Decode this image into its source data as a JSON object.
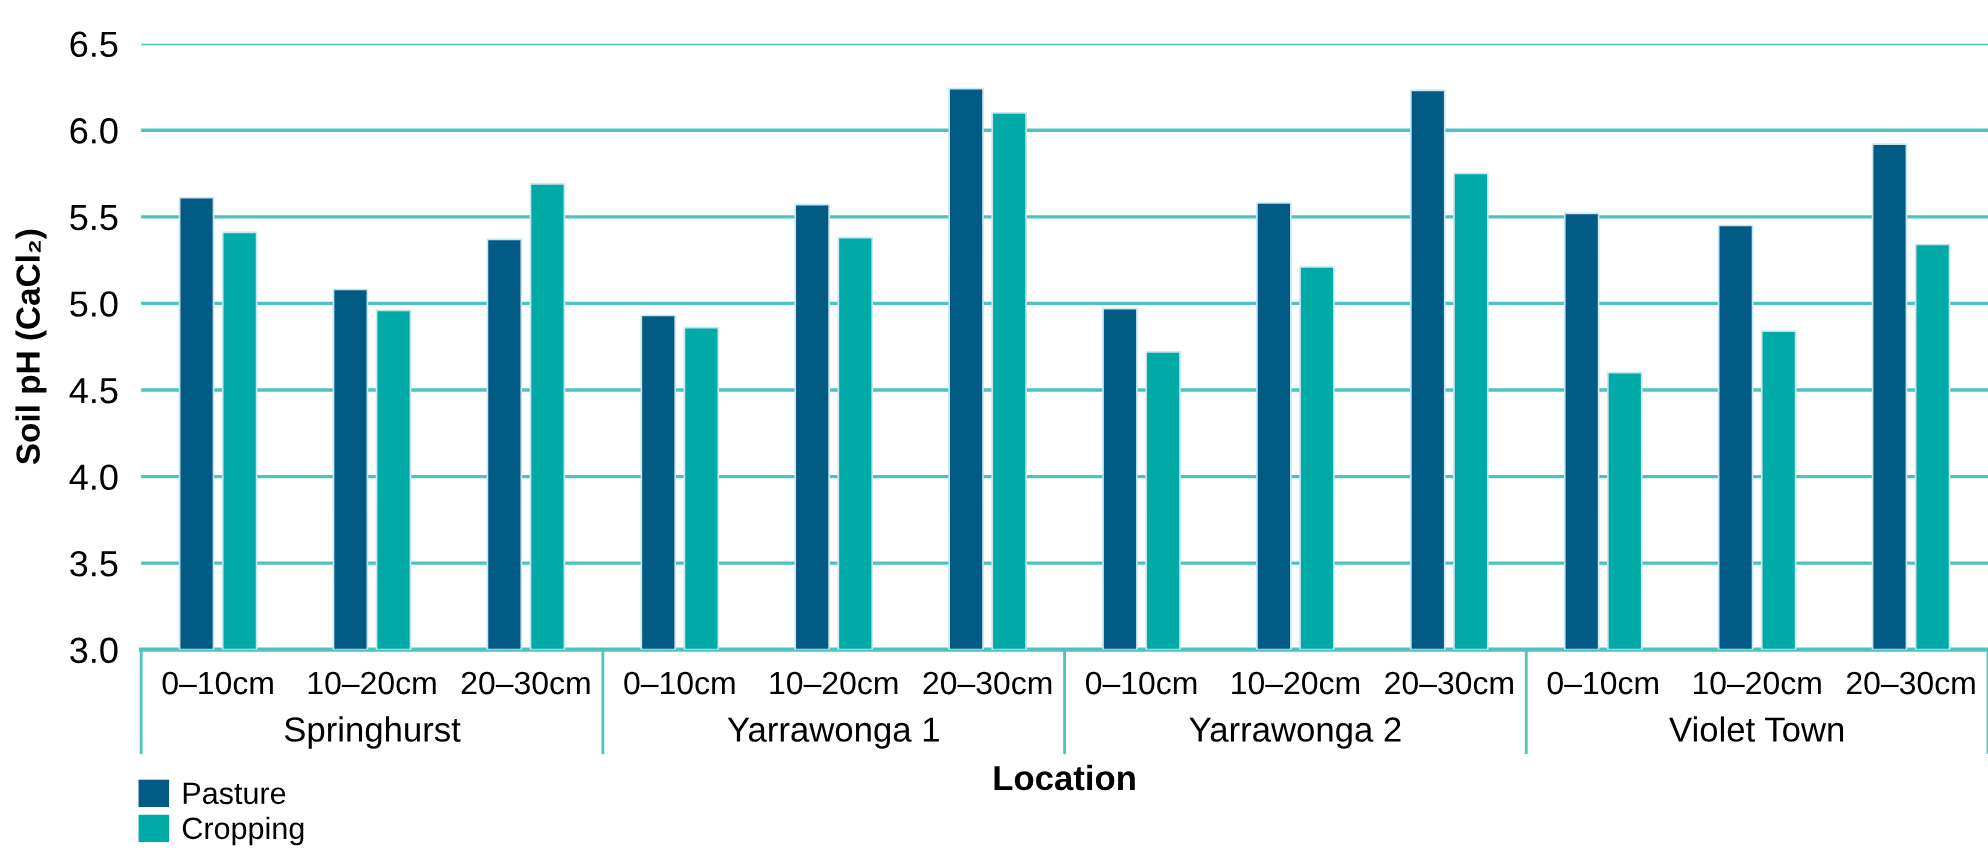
{
  "chart_data": {
    "type": "bar",
    "xlabel": "Location",
    "ylabel": "Soil pH (CaCl₂)",
    "categories": [
      "0–10cm",
      "10–20cm",
      "20–30cm",
      "0–10cm",
      "10–20cm",
      "20–30cm",
      "0–10cm",
      "10–20cm",
      "20–30cm",
      "0–10cm",
      "10–20cm",
      "20–30cm"
    ],
    "series": [
      {
        "name": "Pasture",
        "color": "#025b84",
        "values": [
          5.61,
          5.08,
          5.37,
          4.93,
          5.57,
          6.24,
          4.97,
          5.58,
          6.23,
          5.52,
          5.45,
          5.92
        ]
      },
      {
        "name": "Cropping",
        "color": "#00aaa6",
        "values": [
          5.41,
          4.96,
          5.69,
          4.86,
          5.38,
          6.1,
          4.72,
          5.21,
          5.75,
          4.6,
          4.84,
          5.34
        ]
      }
    ],
    "annotations": [
      "Springhurst",
      "Yarrawonga 1",
      "Yarrawonga 2",
      "Violet Town"
    ],
    "ylim": [
      3.0,
      6.5
    ],
    "yticks": [
      {
        "value": 3,
        "label": "3.0"
      },
      3.5,
      {
        "value": 4,
        "label": "4.0"
      },
      4.5,
      {
        "value": 5,
        "label": "5.0"
      },
      5.5,
      {
        "value": 6,
        "label": "6.0"
      },
      6.5
    ],
    "grid": "y",
    "legend": "bottom left"
  }
}
